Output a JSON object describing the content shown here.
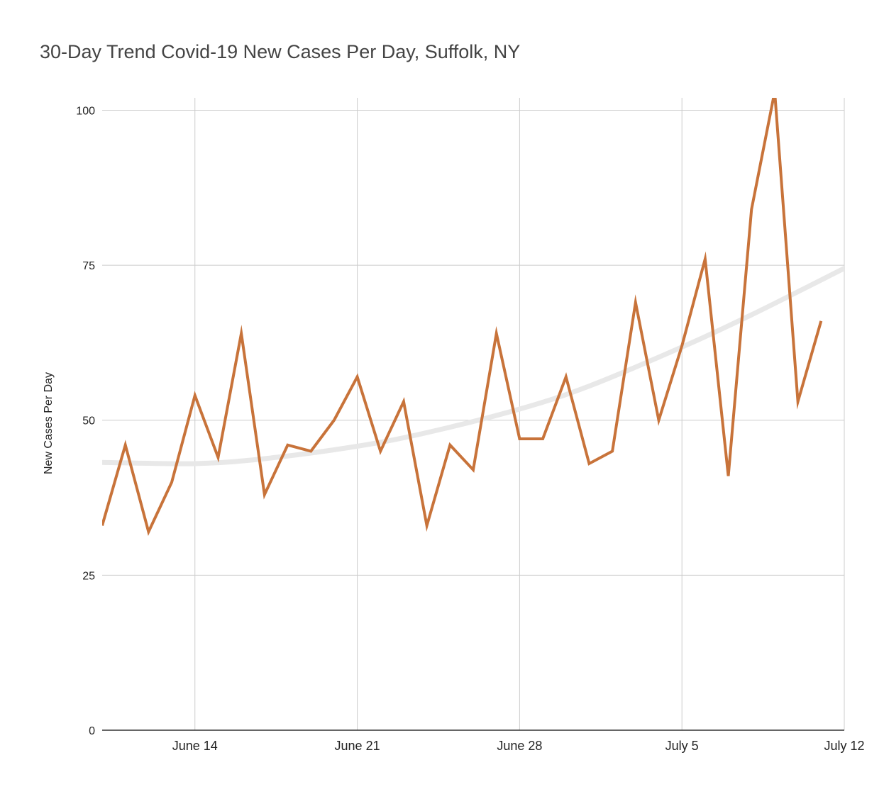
{
  "chart_data": {
    "type": "line",
    "title": "30-Day Trend Covid-19 New Cases Per Day, Suffolk, NY",
    "xlabel": "",
    "ylabel": "New Cases Per Day",
    "ylim": [
      0,
      102
    ],
    "yticks": [
      0,
      25,
      50,
      75,
      100
    ],
    "grid": true,
    "x_ticks": [
      {
        "date": "2020-06-14",
        "label": "June 14"
      },
      {
        "date": "2020-06-21",
        "label": "June 21"
      },
      {
        "date": "2020-06-28",
        "label": "June 28"
      },
      {
        "date": "2020-07-05",
        "label": "July 5"
      },
      {
        "date": "2020-07-12",
        "label": "July 12"
      }
    ],
    "xlim": [
      "2020-06-10",
      "2020-07-12"
    ],
    "colors": {
      "series": "#c8733a",
      "trend": "#e8e8e8",
      "grid": "#cccccc",
      "axis": "#333333"
    },
    "series": [
      {
        "x": [
          "2020-06-10",
          "2020-06-11",
          "2020-06-12",
          "2020-06-13",
          "2020-06-14",
          "2020-06-15",
          "2020-06-16",
          "2020-06-17",
          "2020-06-18",
          "2020-06-19",
          "2020-06-20",
          "2020-06-21",
          "2020-06-22",
          "2020-06-23",
          "2020-06-24",
          "2020-06-25",
          "2020-06-26",
          "2020-06-27",
          "2020-06-28",
          "2020-06-29",
          "2020-06-30",
          "2020-07-01",
          "2020-07-02",
          "2020-07-03",
          "2020-07-04",
          "2020-07-05",
          "2020-07-06",
          "2020-07-07",
          "2020-07-08",
          "2020-07-09",
          "2020-07-10",
          "2020-07-11"
        ],
        "values": [
          33,
          46,
          32,
          40,
          54,
          44,
          64,
          38,
          46,
          45,
          50,
          57,
          45,
          53,
          33,
          46,
          42,
          64,
          47,
          47,
          57,
          43,
          45,
          69,
          50,
          62,
          76,
          41,
          84,
          103,
          53,
          66
        ]
      },
      {
        "x": [
          "2020-06-10",
          "2020-06-14",
          "2020-06-17",
          "2020-06-21",
          "2020-06-24",
          "2020-06-28",
          "2020-07-01",
          "2020-07-05",
          "2020-07-08",
          "2020-07-12"
        ],
        "values": [
          43.2,
          43.0,
          43.8,
          45.8,
          48.0,
          51.8,
          55.5,
          61.8,
          67.0,
          74.5
        ]
      }
    ]
  }
}
